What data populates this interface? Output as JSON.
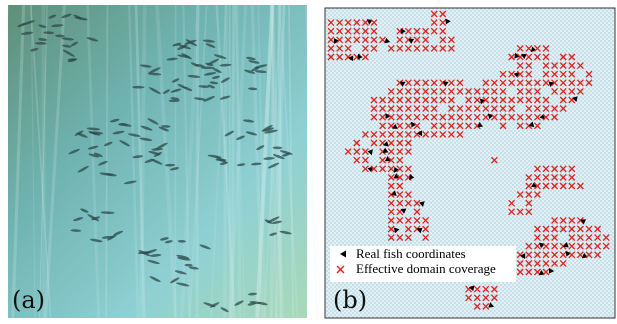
{
  "panels": [
    {
      "label": "(a)"
    },
    {
      "label": "(b)",
      "legend": [
        "Real fish coordinates",
        "Effective domain coverage"
      ]
    }
  ]
}
